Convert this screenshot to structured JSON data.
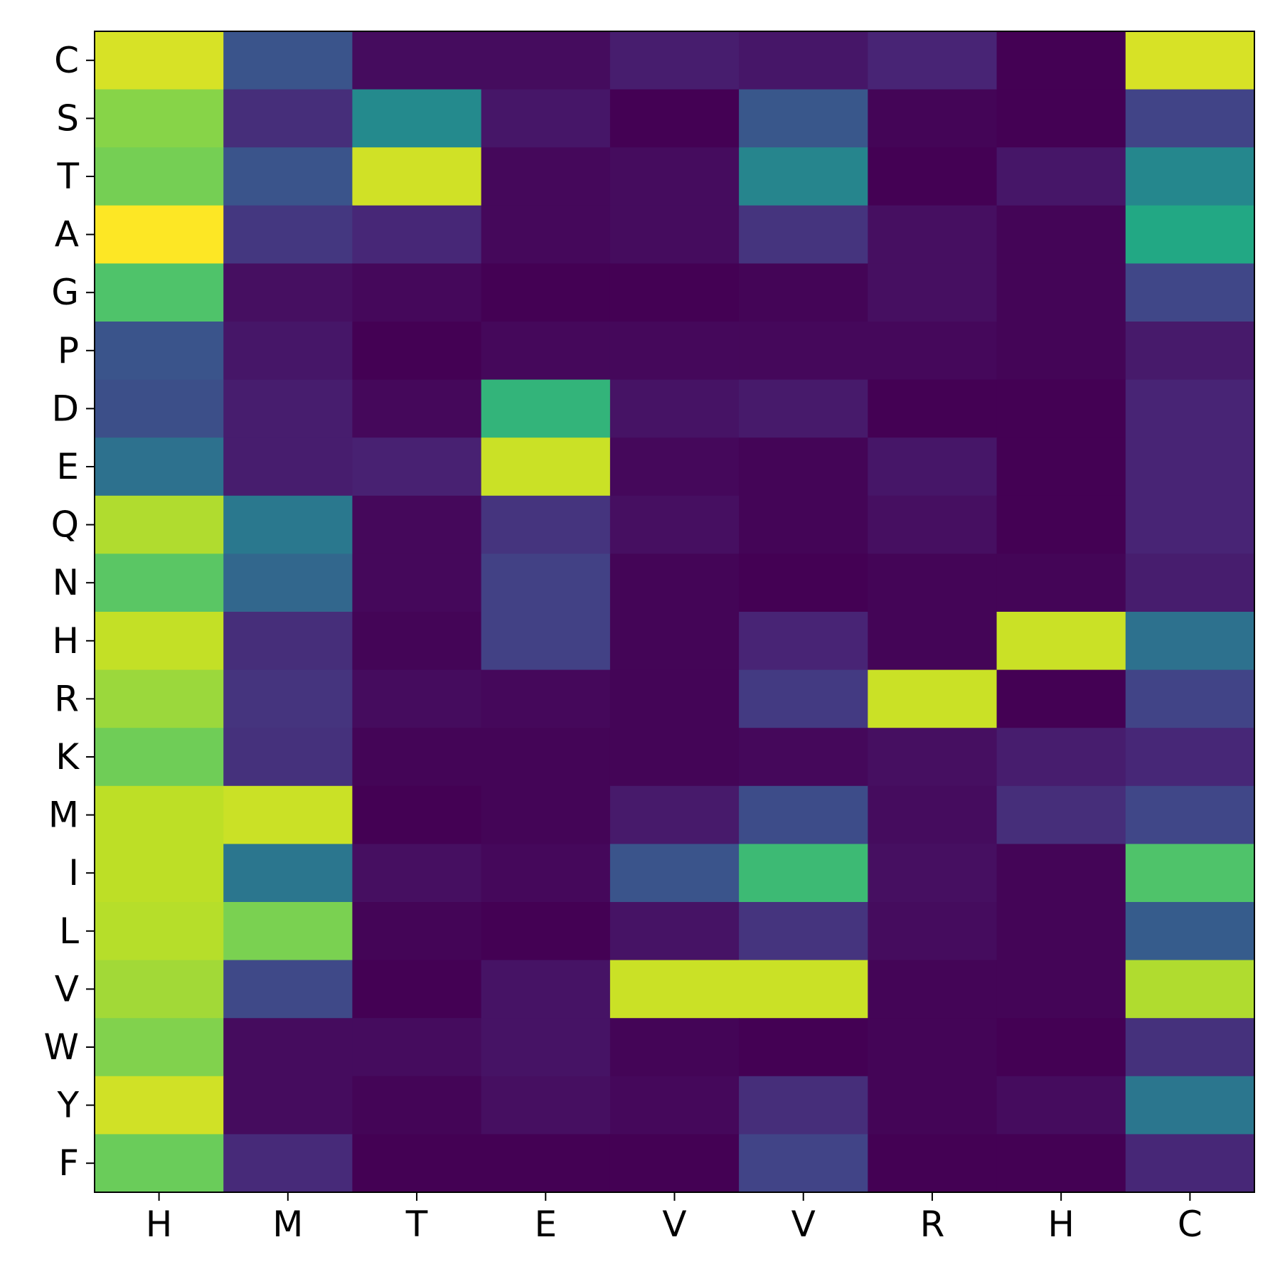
{
  "chart_data": {
    "type": "heatmap",
    "title": "",
    "xlabel": "",
    "ylabel": "",
    "x_categories": [
      "H",
      "M",
      "T",
      "E",
      "V",
      "V",
      "R",
      "H",
      "C"
    ],
    "y_categories": [
      "C",
      "S",
      "T",
      "A",
      "G",
      "P",
      "D",
      "E",
      "Q",
      "N",
      "H",
      "R",
      "K",
      "M",
      "I",
      "L",
      "V",
      "W",
      "Y",
      "F"
    ],
    "colormap": "viridis",
    "value_range": [
      0,
      1
    ],
    "values": [
      [
        0.94,
        0.26,
        0.03,
        0.03,
        0.08,
        0.06,
        0.1,
        0.0,
        0.94
      ],
      [
        0.82,
        0.13,
        0.47,
        0.06,
        0.0,
        0.27,
        0.01,
        0.0,
        0.2
      ],
      [
        0.79,
        0.26,
        0.93,
        0.02,
        0.03,
        0.45,
        0.0,
        0.06,
        0.46
      ],
      [
        1.0,
        0.16,
        0.11,
        0.02,
        0.03,
        0.15,
        0.04,
        0.01,
        0.6
      ],
      [
        0.72,
        0.04,
        0.02,
        0.0,
        0.0,
        0.01,
        0.04,
        0.01,
        0.21
      ],
      [
        0.26,
        0.06,
        0.0,
        0.02,
        0.02,
        0.02,
        0.02,
        0.01,
        0.07
      ],
      [
        0.24,
        0.08,
        0.02,
        0.65,
        0.05,
        0.07,
        0.0,
        0.0,
        0.1
      ],
      [
        0.37,
        0.08,
        0.09,
        0.92,
        0.02,
        0.01,
        0.06,
        0.0,
        0.1
      ],
      [
        0.88,
        0.4,
        0.02,
        0.15,
        0.04,
        0.01,
        0.04,
        0.0,
        0.1
      ],
      [
        0.74,
        0.33,
        0.02,
        0.19,
        0.01,
        0.0,
        0.01,
        0.01,
        0.08
      ],
      [
        0.91,
        0.13,
        0.01,
        0.19,
        0.01,
        0.1,
        0.01,
        0.92,
        0.37
      ],
      [
        0.85,
        0.15,
        0.03,
        0.02,
        0.01,
        0.17,
        0.92,
        0.0,
        0.2
      ],
      [
        0.78,
        0.14,
        0.01,
        0.01,
        0.01,
        0.02,
        0.04,
        0.08,
        0.11
      ],
      [
        0.9,
        0.92,
        0.0,
        0.01,
        0.07,
        0.23,
        0.03,
        0.13,
        0.21
      ],
      [
        0.9,
        0.39,
        0.04,
        0.02,
        0.26,
        0.68,
        0.04,
        0.01,
        0.72
      ],
      [
        0.89,
        0.8,
        0.01,
        0.0,
        0.05,
        0.15,
        0.03,
        0.01,
        0.29
      ],
      [
        0.86,
        0.22,
        0.0,
        0.05,
        0.92,
        0.92,
        0.01,
        0.01,
        0.88
      ],
      [
        0.81,
        0.03,
        0.03,
        0.05,
        0.01,
        0.0,
        0.01,
        0.0,
        0.14
      ],
      [
        0.93,
        0.03,
        0.01,
        0.04,
        0.02,
        0.13,
        0.01,
        0.03,
        0.39
      ],
      [
        0.77,
        0.12,
        0.0,
        0.0,
        0.0,
        0.2,
        0.0,
        0.0,
        0.11
      ]
    ],
    "colorbar": false,
    "grid": false,
    "legend": "none"
  }
}
